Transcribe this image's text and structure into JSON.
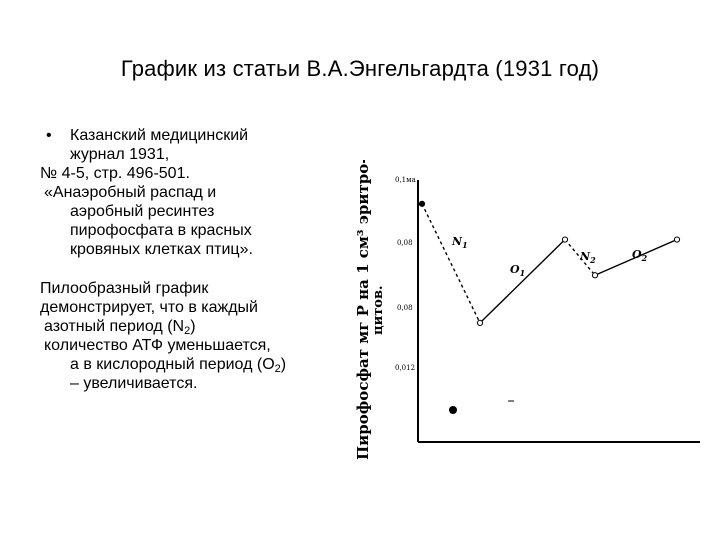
{
  "slide": {
    "title": "График из статьи В.А.Энгельгардта (1931 год)",
    "bullet_symbol": "•",
    "citation": {
      "line1": "Казанский медицинский",
      "line2": "журнал 1931,",
      "line3": "№ 4-5, стр. 496-501.",
      "line4": "«Анаэробный распад и",
      "line5": "аэробный ресинтез",
      "line6": "пирофосфата в красных",
      "line7": "кровяных клетках птиц»."
    },
    "description": {
      "line1": "Пилообразный график",
      "line2": "демонстрирует, что в каждый",
      "line3_pre": "азотный период (N",
      "line3_sub": "2",
      "line3_post": ")",
      "line4": "количество АТФ уменьшается,",
      "line5_pre": "а в кислородный период (O",
      "line5_sub": "2",
      "line5_post": ")",
      "line6": "– увеличивается."
    }
  },
  "figure": {
    "ylabel": "Пирофосфат мг P на 1 см³ эритро-",
    "ylabel2": "цитов.",
    "y_ticks": [
      "0,1ма",
      "0,08",
      "0,08",
      "0,012"
    ],
    "x_ticks": [
      "",
      "",
      "",
      "",
      ""
    ],
    "segment_labels": [
      "N",
      "O",
      "N",
      "O"
    ],
    "segment_subs": [
      "1",
      "1",
      "2",
      "2"
    ]
  },
  "chart_data": {
    "type": "line",
    "x": [
      0,
      1,
      2,
      3,
      4
    ],
    "series": [
      {
        "values": [
          0.1,
          0.05,
          0.085,
          0.07,
          0.085
        ]
      }
    ]
  }
}
